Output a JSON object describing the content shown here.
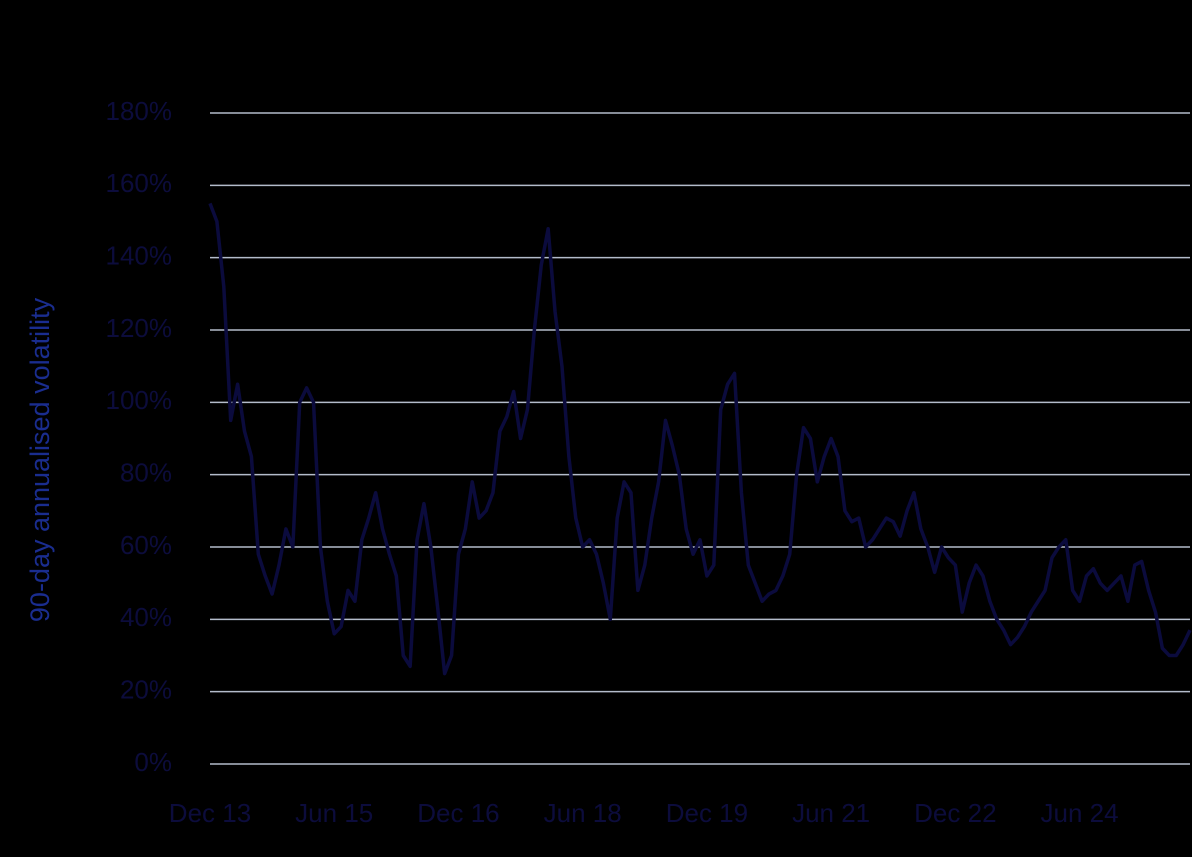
{
  "chart_data": {
    "type": "line",
    "y_label": "90-day annualised volatility",
    "categories": [
      "Dec 13",
      null,
      null,
      null,
      null,
      null,
      null,
      null,
      null,
      null,
      null,
      null,
      null,
      null,
      null,
      null,
      null,
      null,
      "Jun 15",
      null,
      null,
      null,
      null,
      null,
      null,
      null,
      null,
      null,
      null,
      null,
      null,
      null,
      null,
      null,
      null,
      null,
      "Dec 16",
      null,
      null,
      null,
      null,
      null,
      null,
      null,
      null,
      null,
      null,
      null,
      null,
      null,
      null,
      null,
      null,
      null,
      "Jun 18",
      null,
      null,
      null,
      null,
      null,
      null,
      null,
      null,
      null,
      null,
      null,
      null,
      null,
      null,
      null,
      null,
      null,
      "Dec 19",
      null,
      null,
      null,
      null,
      null,
      null,
      null,
      null,
      null,
      null,
      null,
      null,
      null,
      null,
      null,
      null,
      null,
      "Jun 21",
      null,
      null,
      null,
      null,
      null,
      null,
      null,
      null,
      null,
      null,
      null,
      null,
      null,
      null,
      null,
      null,
      null,
      "Dec 22",
      null,
      null,
      null,
      null,
      null,
      null,
      null,
      null,
      null,
      null,
      null,
      null,
      null,
      null,
      null,
      null,
      null,
      "Jun 24",
      null,
      null,
      null,
      null,
      null,
      null,
      null,
      null,
      null,
      null,
      null,
      null,
      null,
      null,
      null,
      null
    ],
    "values": [
      155,
      150,
      132,
      95,
      105,
      92,
      85,
      58,
      52,
      47,
      55,
      65,
      60,
      100,
      104,
      100,
      60,
      45,
      36,
      38,
      48,
      45,
      62,
      68,
      75,
      65,
      58,
      52,
      30,
      27,
      62,
      72,
      60,
      43,
      25,
      30,
      58,
      65,
      78,
      68,
      70,
      75,
      92,
      96,
      103,
      90,
      98,
      120,
      138,
      148,
      125,
      110,
      85,
      68,
      60,
      62,
      58,
      50,
      40,
      68,
      78,
      75,
      48,
      55,
      68,
      78,
      95,
      88,
      80,
      65,
      58,
      62,
      52,
      55,
      98,
      105,
      108,
      75,
      55,
      50,
      45,
      47,
      48,
      52,
      58,
      80,
      93,
      90,
      78,
      85,
      90,
      85,
      70,
      67,
      68,
      60,
      62,
      65,
      68,
      67,
      63,
      70,
      75,
      65,
      60,
      53,
      60,
      57,
      55,
      42,
      50,
      55,
      52,
      45,
      40,
      37,
      33,
      35,
      38,
      42,
      45,
      48,
      57,
      60,
      62,
      48,
      45,
      52,
      54,
      50,
      48,
      50,
      52,
      45,
      55,
      56,
      48,
      42,
      32,
      30,
      30,
      33,
      37
    ],
    "color": "#0b0b3d",
    "ylim": [
      0,
      180
    ],
    "yticks": [
      {
        "value": 0,
        "label": "0%"
      },
      {
        "value": 20,
        "label": "20%"
      },
      {
        "value": 40,
        "label": "40%"
      },
      {
        "value": 60,
        "label": "60%"
      },
      {
        "value": 80,
        "label": "80%"
      },
      {
        "value": 100,
        "label": "100%"
      },
      {
        "value": 120,
        "label": "120%"
      },
      {
        "value": 140,
        "label": "140%"
      },
      {
        "value": 160,
        "label": "160%"
      },
      {
        "value": 180,
        "label": "180%"
      }
    ],
    "grid": true
  }
}
